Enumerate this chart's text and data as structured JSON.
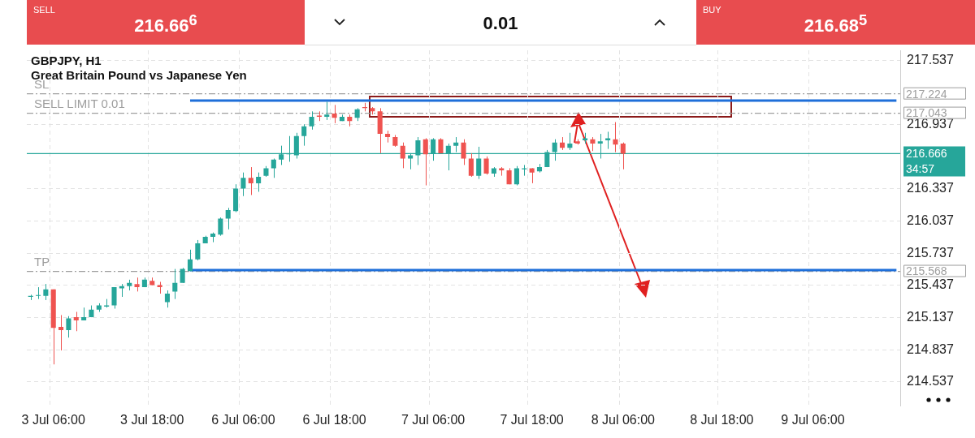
{
  "chart_data": {
    "type": "candlestick",
    "title": "GBPJPY, H1",
    "subtitle": "Great Britain Pound vs Japanese Yen",
    "categories": [
      null,
      null,
      null,
      "3 Jul 06:00",
      null,
      null,
      null,
      null,
      null,
      null,
      null,
      null,
      null,
      null,
      null,
      null,
      "3 Jul 18:00",
      null,
      null,
      null,
      null,
      null,
      null,
      null,
      null,
      null,
      null,
      null,
      "6 Jul 06:00",
      null,
      null,
      null,
      null,
      null,
      null,
      null,
      null,
      null,
      null,
      null,
      "6 Jul 18:00",
      null,
      null,
      null,
      null,
      null,
      null,
      null,
      null,
      null,
      null,
      null,
      null,
      "7 Jul 06:00",
      null,
      null,
      null,
      null,
      null,
      null,
      null,
      null,
      null,
      null,
      null,
      null,
      "7 Jul 18:00",
      null,
      null,
      null,
      null,
      null,
      null,
      null,
      null,
      null,
      null,
      null,
      "8 Jul 06:00",
      null,
      null,
      null,
      null,
      null,
      null,
      null,
      null,
      null,
      null,
      null,
      null,
      "8 Jul 18:00",
      null,
      null,
      null,
      null,
      null,
      null,
      null,
      null,
      null,
      null,
      null,
      "9 Jul 06:00",
      null,
      null,
      null,
      null,
      null,
      null,
      null,
      null,
      null,
      null,
      null
    ],
    "ohlc": [
      [
        215.33,
        215.35,
        215.3,
        215.34
      ],
      [
        215.34,
        215.42,
        215.31,
        215.34
      ],
      [
        215.34,
        215.45,
        215.3,
        215.4
      ],
      [
        215.4,
        215.4,
        214.7,
        215.04
      ],
      [
        215.05,
        215.16,
        214.83,
        215.02
      ],
      [
        215.02,
        215.15,
        214.95,
        215.13
      ],
      [
        215.14,
        215.19,
        215.01,
        215.11
      ],
      [
        215.11,
        215.23,
        215.11,
        215.14
      ],
      [
        215.14,
        215.25,
        215.14,
        215.21
      ],
      [
        215.21,
        215.27,
        215.19,
        215.25
      ],
      [
        215.24,
        215.31,
        215.23,
        215.25
      ],
      [
        215.25,
        215.42,
        215.22,
        215.42
      ],
      [
        215.41,
        215.45,
        215.33,
        215.43
      ],
      [
        215.43,
        215.49,
        215.39,
        215.46
      ],
      [
        215.45,
        215.51,
        215.38,
        215.42
      ],
      [
        215.42,
        215.51,
        215.42,
        215.49
      ],
      [
        215.48,
        215.51,
        215.44,
        215.44
      ],
      [
        215.44,
        215.47,
        215.36,
        215.42
      ],
      [
        215.28,
        215.39,
        215.23,
        215.36
      ],
      [
        215.38,
        215.59,
        215.31,
        215.46
      ],
      [
        215.46,
        215.6,
        215.46,
        215.59
      ],
      [
        215.57,
        215.77,
        215.57,
        215.68
      ],
      [
        215.68,
        215.86,
        215.67,
        215.83
      ],
      [
        215.83,
        215.9,
        215.83,
        215.89
      ],
      [
        215.89,
        215.93,
        215.84,
        215.92
      ],
      [
        215.91,
        216.07,
        215.9,
        216.06
      ],
      [
        216.06,
        216.16,
        215.96,
        216.14
      ],
      [
        216.13,
        216.38,
        216.12,
        216.34
      ],
      [
        216.34,
        216.49,
        216.27,
        216.44
      ],
      [
        216.44,
        216.54,
        216.28,
        216.39
      ],
      [
        216.39,
        216.49,
        216.31,
        216.45
      ],
      [
        216.46,
        216.55,
        216.45,
        216.53
      ],
      [
        216.53,
        216.62,
        216.44,
        216.61
      ],
      [
        216.61,
        216.74,
        216.56,
        216.66
      ],
      [
        216.66,
        216.83,
        216.59,
        216.67
      ],
      [
        216.65,
        216.86,
        216.62,
        216.83
      ],
      [
        216.83,
        216.94,
        216.74,
        216.92
      ],
      [
        216.92,
        217.06,
        216.89,
        217.01
      ],
      [
        217.02,
        217.06,
        216.97,
        217.01
      ],
      [
        217.01,
        217.15,
        216.98,
        217.03
      ],
      [
        217.04,
        217.12,
        216.95,
        217.0
      ],
      [
        216.97,
        217.03,
        216.97,
        217.01
      ],
      [
        217.01,
        217.03,
        216.92,
        216.97
      ],
      [
        217.0,
        217.09,
        216.97,
        217.08
      ],
      [
        217.1,
        217.14,
        217.06,
        217.09
      ],
      [
        217.09,
        217.1,
        217.03,
        217.06
      ],
      [
        217.06,
        217.09,
        216.67,
        216.85
      ],
      [
        216.85,
        216.88,
        216.77,
        216.82
      ],
      [
        216.82,
        216.84,
        216.73,
        216.74
      ],
      [
        216.74,
        216.77,
        216.53,
        216.62
      ],
      [
        216.62,
        216.67,
        216.52,
        216.65
      ],
      [
        216.65,
        216.82,
        216.56,
        216.79
      ],
      [
        216.8,
        216.81,
        216.37,
        216.66
      ],
      [
        216.67,
        216.81,
        216.6,
        216.8
      ],
      [
        216.8,
        216.81,
        216.67,
        216.67
      ],
      [
        216.67,
        216.76,
        216.51,
        216.74
      ],
      [
        216.74,
        216.82,
        216.68,
        216.77
      ],
      [
        216.77,
        216.8,
        216.56,
        216.62
      ],
      [
        216.62,
        216.67,
        216.45,
        216.46
      ],
      [
        216.46,
        216.73,
        216.43,
        216.62
      ],
      [
        216.62,
        216.64,
        216.47,
        216.48
      ],
      [
        216.48,
        216.54,
        216.45,
        216.53
      ],
      [
        216.53,
        216.54,
        216.46,
        216.51
      ],
      [
        216.51,
        216.53,
        216.38,
        216.38
      ],
      [
        216.38,
        216.55,
        216.37,
        216.53
      ],
      [
        216.52,
        216.56,
        216.46,
        216.53
      ],
      [
        216.53,
        216.53,
        216.39,
        216.49
      ],
      [
        216.5,
        216.57,
        216.49,
        216.54
      ],
      [
        216.54,
        216.7,
        216.54,
        216.68
      ],
      [
        216.68,
        216.8,
        216.6,
        216.77
      ],
      [
        216.77,
        216.82,
        216.7,
        216.72
      ],
      [
        216.72,
        216.86,
        216.7,
        216.76
      ],
      [
        216.78,
        216.8,
        216.75,
        216.76
      ],
      [
        216.79,
        216.86,
        216.76,
        216.81
      ],
      [
        216.8,
        216.82,
        216.69,
        216.76
      ],
      [
        216.76,
        216.85,
        216.62,
        216.78
      ],
      [
        216.79,
        216.87,
        216.71,
        216.81
      ],
      [
        216.8,
        216.96,
        216.68,
        216.75
      ],
      [
        216.76,
        216.77,
        216.52,
        216.666
      ],
      null,
      null,
      null,
      null,
      null,
      null,
      null,
      null,
      null,
      null,
      null,
      null,
      null,
      null,
      null,
      null,
      null,
      null,
      null,
      null,
      null,
      null,
      null,
      null,
      null,
      null,
      null,
      null,
      null,
      null,
      null,
      null,
      null,
      null,
      null,
      null
    ],
    "colors": [
      "#26a69a",
      "#26a69a",
      "#26a69a",
      "#ef5350",
      "#ef5350",
      "#26a69a",
      "#ef5350",
      "#26a69a",
      "#26a69a",
      "#26a69a",
      "#26a69a",
      "#26a69a",
      "#26a69a",
      "#26a69a",
      "#ef5350",
      "#26a69a",
      "#ef5350",
      "#ef5350",
      "#26a69a",
      "#26a69a",
      "#26a69a",
      "#26a69a",
      "#26a69a",
      "#26a69a",
      "#26a69a",
      "#26a69a",
      "#26a69a",
      "#26a69a",
      "#26a69a",
      "#ef5350",
      "#26a69a",
      "#26a69a",
      "#26a69a",
      "#26a69a",
      "#26a69a",
      "#26a69a",
      "#26a69a",
      "#26a69a",
      "#ef5350",
      "#26a69a",
      "#ef5350",
      "#26a69a",
      "#ef5350",
      "#26a69a",
      "#ef5350",
      "#ef5350",
      "#ef5350",
      "#ef5350",
      "#ef5350",
      "#ef5350",
      "#26a69a",
      "#26a69a",
      "#ef5350",
      "#26a69a",
      "#ef5350",
      "#26a69a",
      "#26a69a",
      "#ef5350",
      "#ef5350",
      "#26a69a",
      "#ef5350",
      "#26a69a",
      "#ef5350",
      "#ef5350",
      "#26a69a",
      "#26a69a",
      "#ef5350",
      "#26a69a",
      "#26a69a",
      "#26a69a",
      "#ef5350",
      "#26a69a",
      "#ef5350",
      "#26a69a",
      "#ef5350",
      "#26a69a",
      "#26a69a",
      "#ef5350",
      "#ef5350",
      null,
      null,
      null,
      null,
      null,
      null,
      null,
      null,
      null,
      null,
      null,
      null,
      null,
      null,
      null,
      null,
      null,
      null,
      null,
      null,
      null,
      null,
      null,
      null,
      null,
      null,
      null,
      null,
      null,
      null,
      null,
      null,
      null,
      null,
      null,
      null
    ],
    "series": [
      {
        "type": "line",
        "color": "#1e6fd9",
        "values": [
          null,
          null,
          null,
          null,
          null,
          null,
          null,
          null,
          null,
          null,
          null,
          null,
          null,
          null,
          null,
          null,
          null,
          null,
          null,
          null,
          null,
          217.16,
          217.16,
          217.16,
          217.16,
          217.16,
          217.16,
          217.16,
          217.16,
          217.16,
          217.16,
          217.16,
          217.16,
          217.16,
          217.16,
          217.16,
          217.16,
          217.16,
          217.16,
          217.16,
          217.16,
          217.16,
          217.16,
          217.16,
          217.16,
          217.16,
          217.16,
          217.16,
          217.16,
          217.16,
          217.16,
          217.16,
          217.16,
          217.16,
          217.16,
          217.16,
          217.16,
          217.16,
          217.16,
          217.16,
          217.16,
          217.16,
          217.16,
          217.16,
          217.16,
          217.16,
          217.16,
          217.16,
          217.16,
          217.16,
          217.16,
          217.16,
          217.16,
          217.16,
          217.16,
          217.16,
          217.16,
          217.16,
          217.16,
          217.16,
          217.16,
          217.16,
          217.16,
          217.16,
          217.16,
          217.16,
          217.16,
          217.16,
          217.16,
          217.16,
          217.16,
          217.16,
          217.16,
          217.16,
          217.16,
          217.16,
          217.16,
          217.16,
          217.16,
          217.16,
          217.16,
          217.16,
          217.16,
          217.16,
          217.16,
          217.16,
          217.16,
          217.16,
          217.16,
          217.16,
          217.16,
          217.16,
          217.16,
          217.16,
          217.16
        ]
      },
      {
        "type": "line",
        "color": "#1e6fd9",
        "values": [
          null,
          null,
          null,
          null,
          null,
          null,
          null,
          null,
          null,
          null,
          null,
          null,
          null,
          null,
          null,
          null,
          null,
          null,
          null,
          null,
          null,
          215.58,
          215.58,
          215.58,
          215.58,
          215.58,
          215.58,
          215.58,
          215.58,
          215.58,
          215.58,
          215.58,
          215.58,
          215.58,
          215.58,
          215.58,
          215.58,
          215.58,
          215.58,
          215.58,
          215.58,
          215.58,
          215.58,
          215.58,
          215.58,
          215.58,
          215.58,
          215.58,
          215.58,
          215.58,
          215.58,
          215.58,
          215.58,
          215.58,
          215.58,
          215.58,
          215.58,
          215.58,
          215.58,
          215.58,
          215.58,
          215.58,
          215.58,
          215.58,
          215.58,
          215.58,
          215.58,
          215.58,
          215.58,
          215.58,
          215.58,
          215.58,
          215.58,
          215.58,
          215.58,
          215.58,
          215.58,
          215.58,
          215.58,
          215.58,
          215.58,
          215.58,
          215.58,
          215.58,
          215.58,
          215.58,
          215.58,
          215.58,
          215.58,
          215.58,
          215.58,
          215.58,
          215.58,
          215.58,
          215.58,
          215.58,
          215.58,
          215.58,
          215.58,
          215.58,
          215.58,
          215.58,
          215.58,
          215.58,
          215.58,
          215.58,
          215.58,
          215.58,
          215.58,
          215.58,
          215.58,
          215.58,
          215.58,
          215.58,
          215.58
        ]
      }
    ],
    "ylim": [
      214.31,
      217.63
    ],
    "yticks": [
      214.537,
      214.837,
      215.137,
      215.437,
      215.737,
      216.037,
      216.337,
      216.937,
      217.537
    ],
    "grid": true,
    "ref_lines": [
      {
        "axis": "y",
        "value": 217.224,
        "label": "SL",
        "color": "#9e9e9e",
        "line_style": "dashed"
      },
      {
        "axis": "y",
        "value": 217.043,
        "label": "SELL LIMIT 0.01",
        "color": "#9e9e9e",
        "line_style": "dashed"
      },
      {
        "axis": "y",
        "value": 215.568,
        "label": "TP",
        "color": "#9e9e9e",
        "line_style": "dashed"
      },
      {
        "axis": "y",
        "value": 216.666,
        "label": null,
        "color": "#26a69a",
        "line_style": "solid"
      }
    ],
    "annotations": [
      "SELL",
      "216.66$^{6}$",
      "0.01",
      "BUY",
      "216.68$^{5}$",
      "217.224",
      "217.043",
      "215.568",
      "216.666",
      "34:57"
    ]
  }
}
